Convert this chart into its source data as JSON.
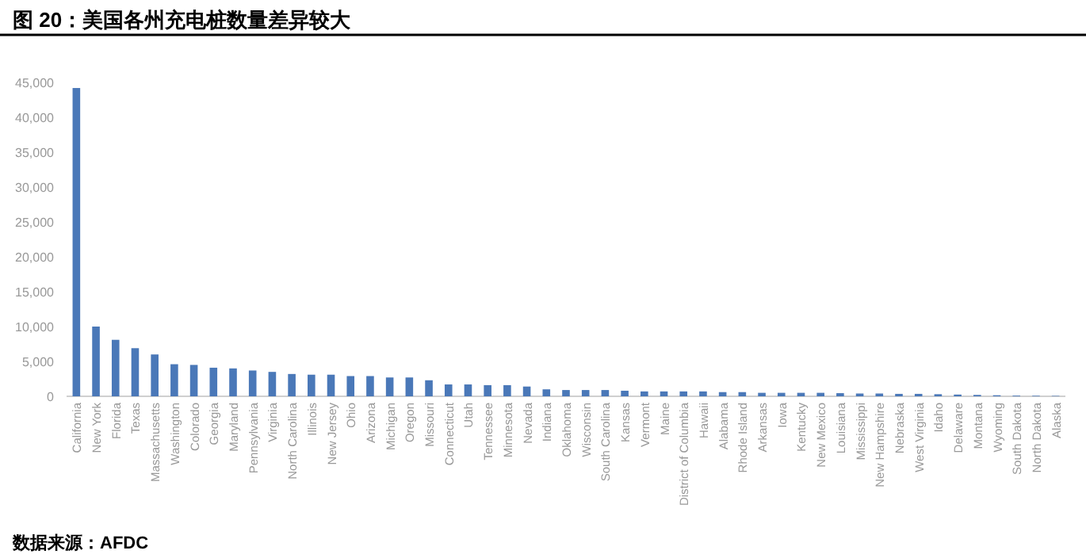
{
  "chart_data": {
    "type": "bar",
    "title": "图 20：美国各州充电桩数量差异较大",
    "annotations": [
      "数据来源：AFDC"
    ],
    "categories": [
      "California",
      "New York",
      "Florida",
      "Texas",
      "Massachusetts",
      "Washington",
      "Colorado",
      "Georgia",
      "Maryland",
      "Pennsylvania",
      "Virginia",
      "North Carolina",
      "Illinois",
      "New Jersey",
      "Ohio",
      "Arizona",
      "Michigan",
      "Oregon",
      "Missouri",
      "Connecticut",
      "Utah",
      "Tennessee",
      "Minnesota",
      "Nevada",
      "Indiana",
      "Oklahoma",
      "Wisconsin",
      "South Carolina",
      "Kansas",
      "Vermont",
      "Maine",
      "District of Columbia",
      "Hawaii",
      "Alabama",
      "Rhode Island",
      "Arkansas",
      "Iowa",
      "Kentucky",
      "New Mexico",
      "Louisiana",
      "Mississippi",
      "New Hampshire",
      "Nebraska",
      "West Virginia",
      "Idaho",
      "Delaware",
      "Montana",
      "Wyoming",
      "South Dakota",
      "North Dakota",
      "Alaska"
    ],
    "values": [
      44200,
      10000,
      8100,
      6900,
      6000,
      4600,
      4500,
      4100,
      4000,
      3700,
      3500,
      3200,
      3100,
      3100,
      2900,
      2900,
      2700,
      2700,
      2300,
      1700,
      1700,
      1600,
      1600,
      1400,
      1000,
      900,
      900,
      900,
      800,
      700,
      700,
      700,
      700,
      600,
      600,
      500,
      500,
      500,
      500,
      450,
      400,
      400,
      350,
      350,
      300,
      250,
      200,
      150,
      100,
      80,
      60
    ],
    "color": "#4a78b8",
    "ylim": [
      0,
      45000
    ],
    "yticks": [
      {
        "value": 0,
        "label": "0"
      },
      {
        "value": 5000,
        "label": "5,000"
      },
      {
        "value": 10000,
        "label": "10,000"
      },
      {
        "value": 15000,
        "label": "15,000"
      },
      {
        "value": 20000,
        "label": "20,000"
      },
      {
        "value": 25000,
        "label": "25,000"
      },
      {
        "value": 30000,
        "label": "30,000"
      },
      {
        "value": 35000,
        "label": "35,000"
      },
      {
        "value": 40000,
        "label": "40,000"
      },
      {
        "value": 45000,
        "label": "45,000"
      }
    ]
  }
}
